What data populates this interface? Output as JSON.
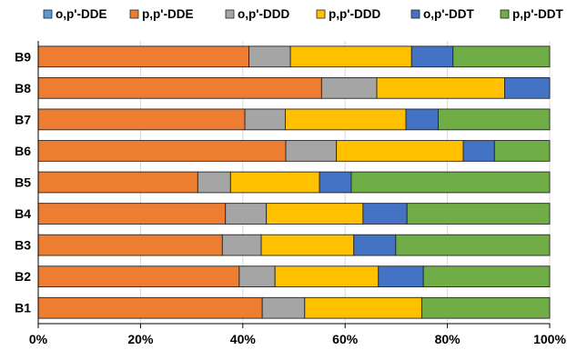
{
  "chart_data": {
    "type": "bar",
    "orientation": "horizontal",
    "stacked": true,
    "normalized": true,
    "title": "",
    "xlabel": "",
    "ylabel": "",
    "xlim": [
      0,
      100
    ],
    "x_ticks": [
      "0%",
      "20%",
      "40%",
      "60%",
      "80%",
      "100%"
    ],
    "grid": true,
    "legend_position": "top",
    "categories": [
      "B9",
      "B8",
      "B7",
      "B6",
      "B5",
      "B4",
      "B3",
      "B2",
      "B1"
    ],
    "series": [
      {
        "name": "o,p'-DDE",
        "color": "#5B9BD5",
        "values": [
          0,
          0,
          0,
          0,
          0,
          0,
          0,
          0,
          0
        ]
      },
      {
        "name": "p,p'-DDE",
        "color": "#ED7D31",
        "values": [
          41.2,
          55.4,
          40.4,
          48.4,
          31.2,
          36.6,
          36.0,
          39.3,
          43.8
        ]
      },
      {
        "name": "o,p'-DDD",
        "color": "#A5A5A5",
        "values": [
          8.1,
          10.8,
          7.9,
          9.9,
          6.4,
          8.0,
          7.6,
          7.0,
          8.3
        ]
      },
      {
        "name": "p,p'-DDD",
        "color": "#FFC000",
        "values": [
          23.7,
          25.0,
          23.6,
          24.8,
          17.4,
          18.9,
          18.1,
          20.2,
          22.9
        ]
      },
      {
        "name": "o,p'-DDT",
        "color": "#4472C4",
        "values": [
          8.1,
          8.8,
          6.3,
          6.1,
          6.2,
          8.6,
          8.2,
          8.8,
          0
        ]
      },
      {
        "name": "p,p'-DDT",
        "color": "#70AD47",
        "values": [
          18.9,
          0,
          21.8,
          10.8,
          38.8,
          27.9,
          30.1,
          24.7,
          25.0
        ]
      }
    ]
  }
}
